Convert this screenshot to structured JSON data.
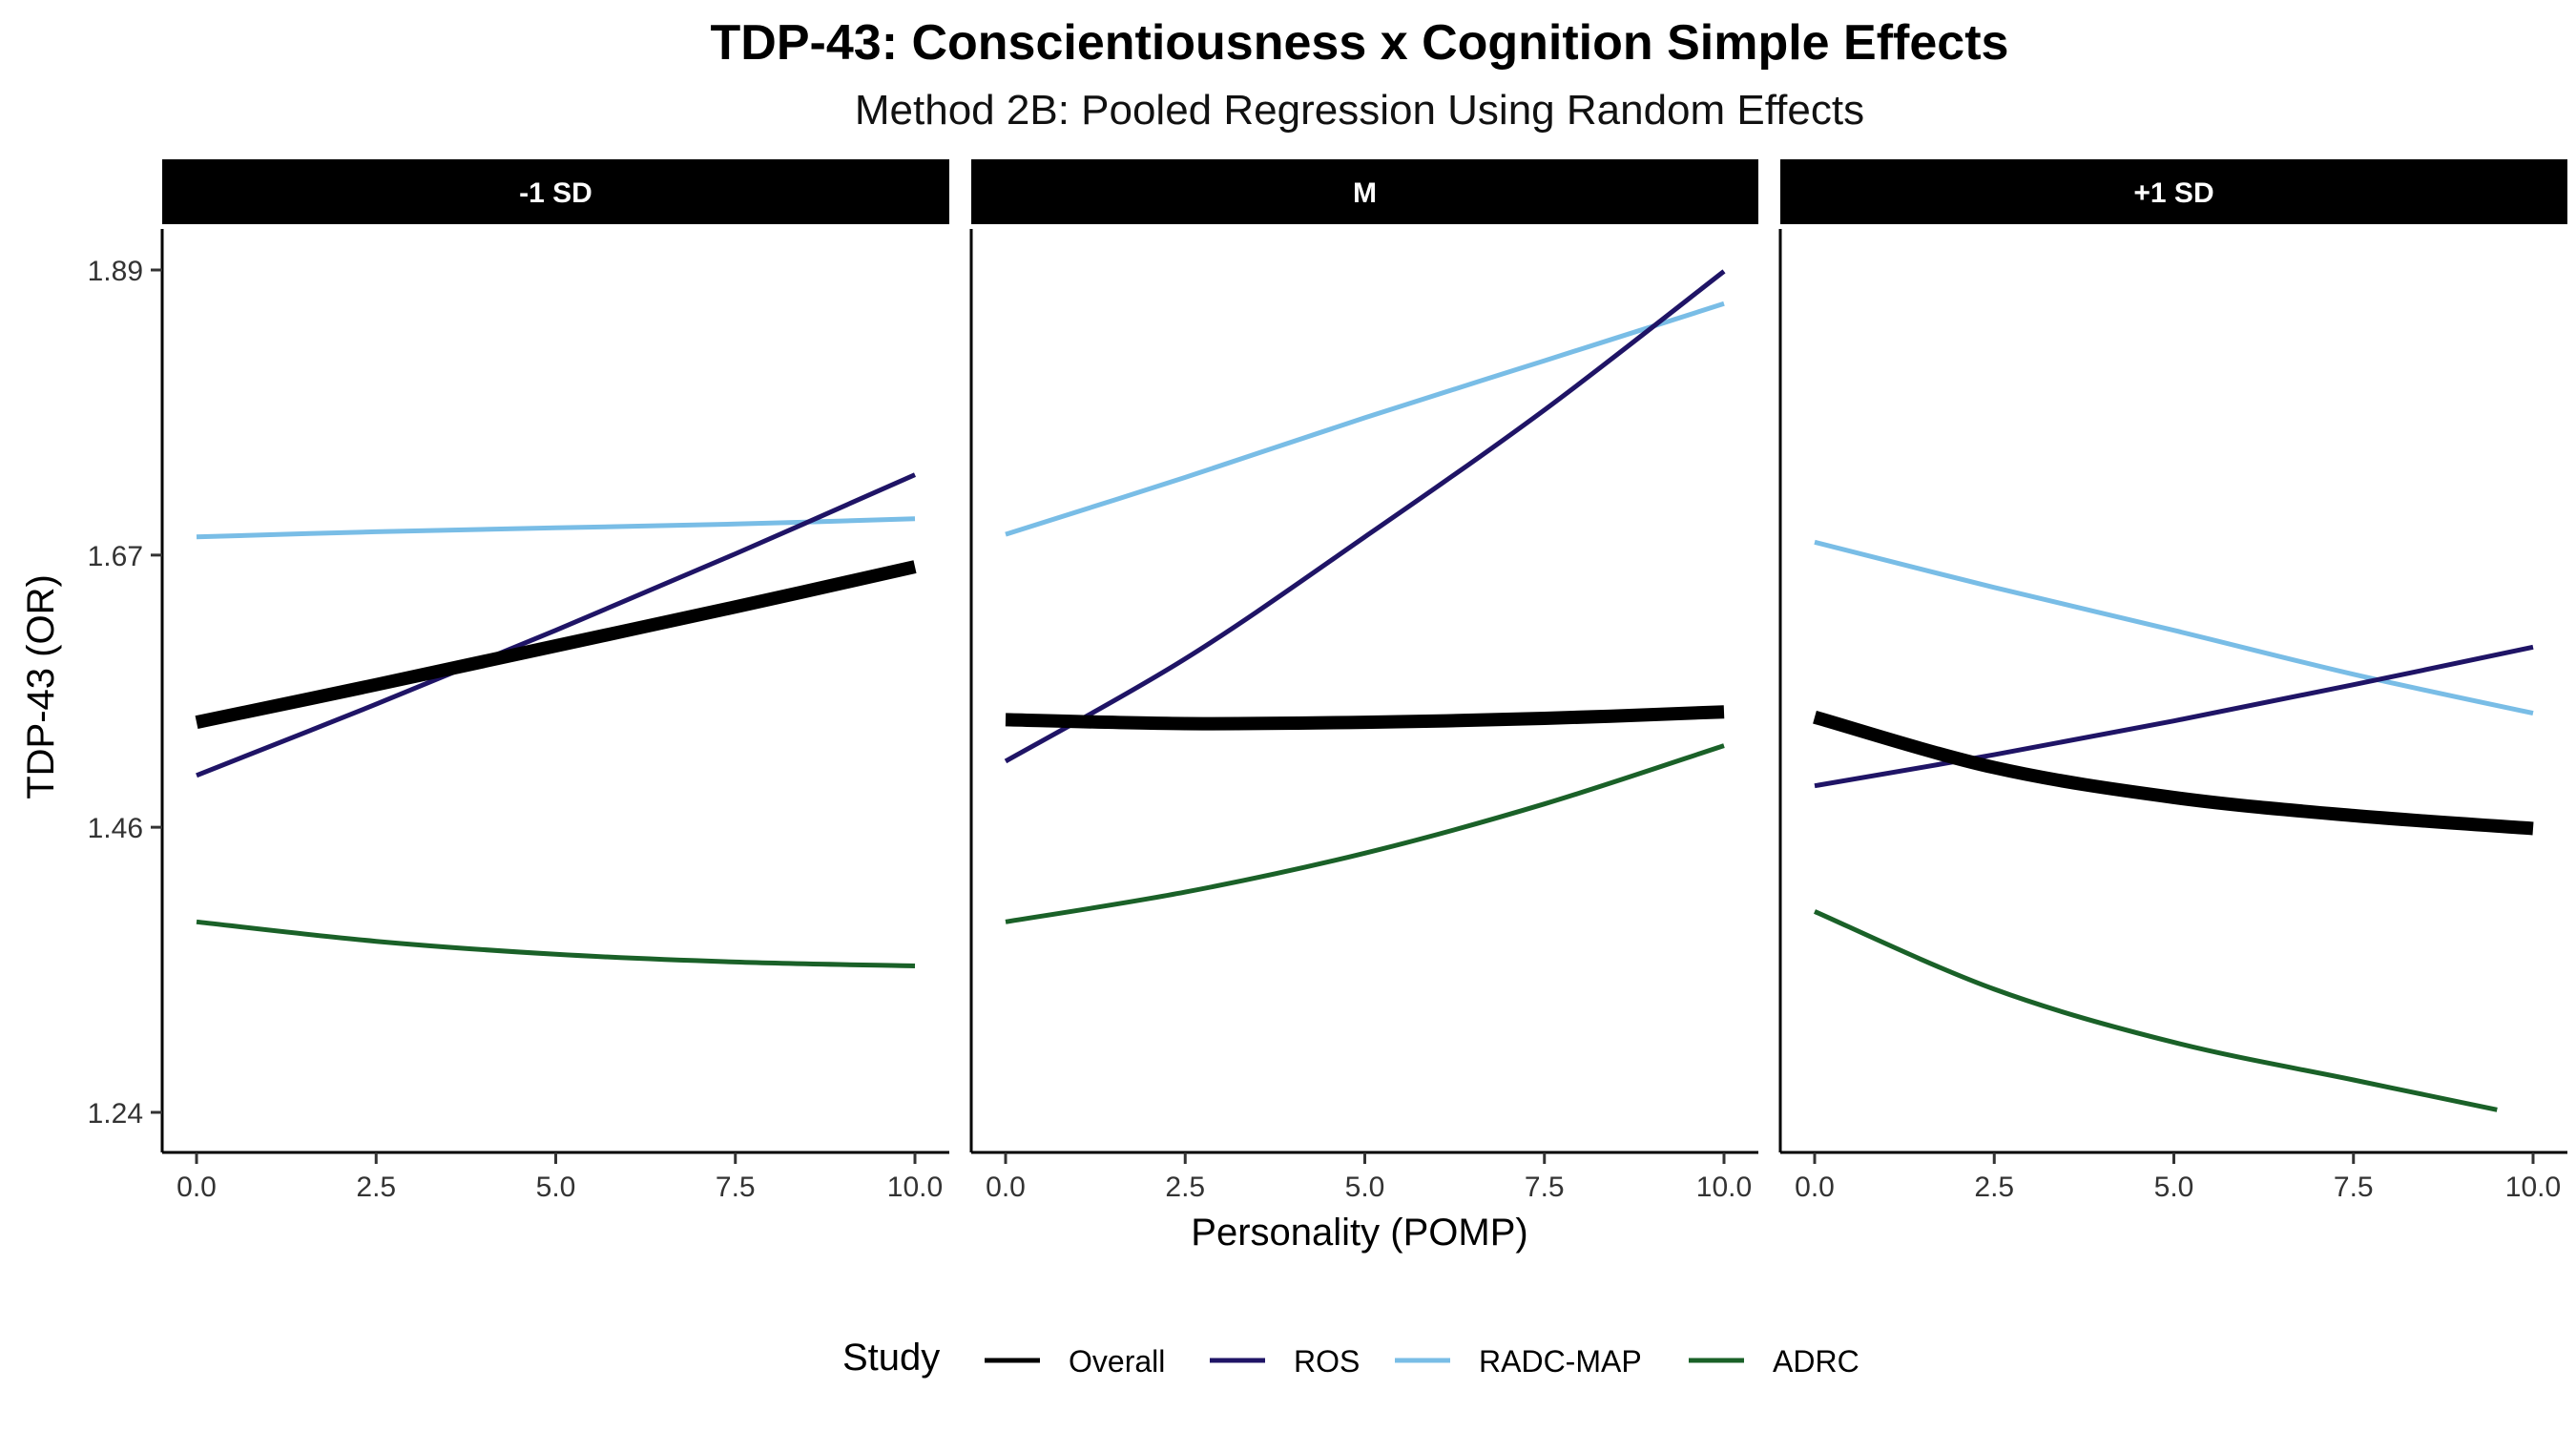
{
  "chart_data": {
    "type": "line",
    "title": "TDP-43: Conscientiousness x Cognition Simple Effects",
    "subtitle": "Method 2B: Pooled Regression Using Random Effects",
    "xlabel": "Personality (POMP)",
    "ylabel": "TDP-43 (OR)",
    "xlim": [
      0,
      10
    ],
    "ylim": [
      1.24,
      1.89
    ],
    "x_ticks": [
      "0.0",
      "2.5",
      "5.0",
      "7.5",
      "10.0"
    ],
    "y_ticks": [
      "1.24",
      "1.46",
      "1.67",
      "1.89"
    ],
    "grid": false,
    "legend": {
      "title": "Study",
      "position": "bottom",
      "entries": [
        "Overall",
        "ROS",
        "RADC-MAP",
        "ADRC"
      ]
    },
    "colors": {
      "Overall": "#000000",
      "ROS": "#1f1466",
      "RADC-MAP": "#79bde6",
      "ADRC": "#1a6128"
    },
    "panels": [
      {
        "label": "-1 SD",
        "series": [
          {
            "name": "Overall",
            "x": [
              0,
              2.5,
              5,
              7.5,
              10
            ],
            "y": [
              1.541,
              1.57,
              1.6,
              1.63,
              1.661
            ]
          },
          {
            "name": "ROS",
            "x": [
              0,
              2.5,
              5,
              7.5,
              10
            ],
            "y": [
              1.5,
              1.555,
              1.612,
              1.671,
              1.732
            ]
          },
          {
            "name": "RADC-MAP",
            "x": [
              0,
              2.5,
              5,
              7.5,
              10
            ],
            "y": [
              1.684,
              1.688,
              1.691,
              1.694,
              1.698
            ]
          },
          {
            "name": "ADRC",
            "x": [
              0,
              2.5,
              5,
              7.5,
              10
            ],
            "y": [
              1.387,
              1.372,
              1.362,
              1.356,
              1.353
            ]
          }
        ]
      },
      {
        "label": "M",
        "series": [
          {
            "name": "Overall",
            "x": [
              0,
              2.5,
              5,
              7.5,
              10
            ],
            "y": [
              1.543,
              1.54,
              1.541,
              1.544,
              1.549
            ]
          },
          {
            "name": "ROS",
            "x": [
              0,
              2.5,
              5,
              7.5,
              10
            ],
            "y": [
              1.511,
              1.59,
              1.684,
              1.782,
              1.889
            ]
          },
          {
            "name": "RADC-MAP",
            "x": [
              0,
              2.5,
              5,
              7.5,
              10
            ],
            "y": [
              1.686,
              1.73,
              1.776,
              1.82,
              1.864
            ]
          },
          {
            "name": "ADRC",
            "x": [
              0,
              2.5,
              5,
              7.5,
              10
            ],
            "y": [
              1.387,
              1.41,
              1.44,
              1.478,
              1.523
            ]
          }
        ]
      },
      {
        "label": "+1 SD",
        "series": [
          {
            "name": "Overall",
            "x": [
              0,
              2.5,
              5,
              7.5,
              10
            ],
            "y": [
              1.545,
              1.506,
              1.483,
              1.469,
              1.459
            ]
          },
          {
            "name": "ROS",
            "x": [
              0,
              2.5,
              5,
              7.5,
              10
            ],
            "y": [
              1.492,
              1.516,
              1.542,
              1.57,
              1.599
            ]
          },
          {
            "name": "RADC-MAP",
            "x": [
              0,
              2.5,
              5,
              7.5,
              10
            ],
            "y": [
              1.68,
              1.645,
              1.612,
              1.578,
              1.548
            ]
          },
          {
            "name": "ADRC",
            "x": [
              0,
              2.5,
              5,
              7.5,
              9.5
            ],
            "y": [
              1.395,
              1.335,
              1.294,
              1.265,
              1.242
            ]
          }
        ]
      }
    ]
  }
}
